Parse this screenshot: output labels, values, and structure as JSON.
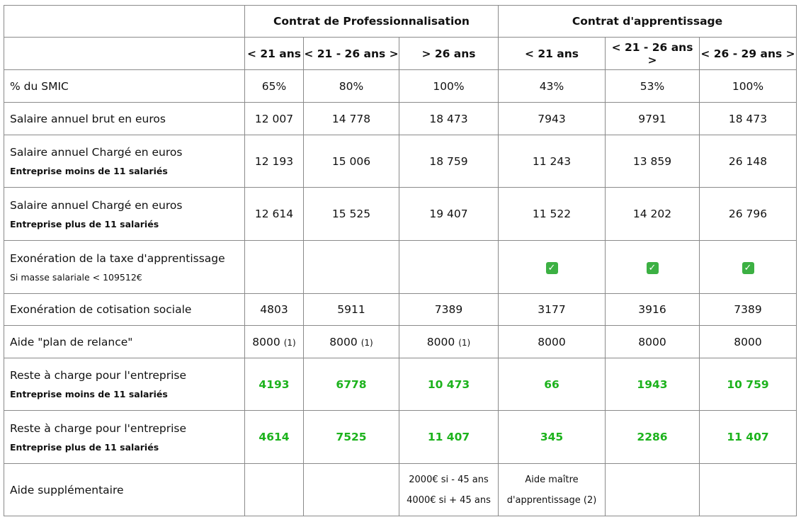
{
  "header": {
    "group_pro": "Contrat de Professionnalisation",
    "group_app": "Contrat d'apprentissage",
    "ages": [
      "< 21 ans",
      "< 21 - 26 ans >",
      "> 26 ans",
      "< 21 ans",
      "< 21 - 26 ans >",
      "< 26 - 29 ans >"
    ]
  },
  "rows": {
    "smic": {
      "label": "% du SMIC",
      "values": [
        "65%",
        "80%",
        "100%",
        "43%",
        "53%",
        "100%"
      ]
    },
    "brut": {
      "label": "Salaire annuel brut en euros",
      "values": [
        "12 007",
        "14 778",
        "18 473",
        "7943",
        "9791",
        "18 473"
      ]
    },
    "charge_moins": {
      "label": "Salaire annuel Chargé en euros",
      "sub": "Entreprise moins de 11 salariés",
      "values": [
        "12 193",
        "15 006",
        "18 759",
        "11 243",
        "13 859",
        "26 148"
      ]
    },
    "charge_plus": {
      "label": "Salaire annuel Chargé en euros",
      "sub": "Entreprise plus de 11 salariés",
      "values": [
        "12 614",
        "15 525",
        "19 407",
        "11 522",
        "14 202",
        "26 796"
      ]
    },
    "taxe": {
      "label": "Exonération de la taxe d'apprentissage",
      "sub": "Si masse salariale < 109512€",
      "check_icon": "check-box-icon",
      "check_color": "#3cb043"
    },
    "cotisation": {
      "label": "Exonération de cotisation sociale",
      "values": [
        "4803",
        "5911",
        "7389",
        "3177",
        "3916",
        "7389"
      ]
    },
    "plan": {
      "label": "Aide \"plan de relance\"",
      "values": [
        "8000",
        "8000",
        "8000",
        "8000",
        "8000",
        "8000"
      ],
      "note": "(1)"
    },
    "reste_moins": {
      "label": "Reste à charge pour l'entreprise",
      "sub": "Entreprise moins de 11 salariés",
      "values": [
        "4193",
        "6778",
        "10 473",
        "66",
        "1943",
        "10 759"
      ]
    },
    "reste_plus": {
      "label": "Reste à charge pour l'entreprise",
      "sub": "Entreprise plus de 11 salariés",
      "values": [
        "4614",
        "7525",
        "11 407",
        "345",
        "2286",
        "11 407"
      ]
    },
    "aide_sup": {
      "label": "Aide supplémentaire",
      "pro_line1": "2000€ si - 45 ans",
      "pro_line2": "4000€ si + 45 ans",
      "app_line1": "Aide maître",
      "app_line2": "d'apprentissage (2)"
    }
  },
  "colors": {
    "green": "#1db31d",
    "border": "#8a8a8a"
  }
}
